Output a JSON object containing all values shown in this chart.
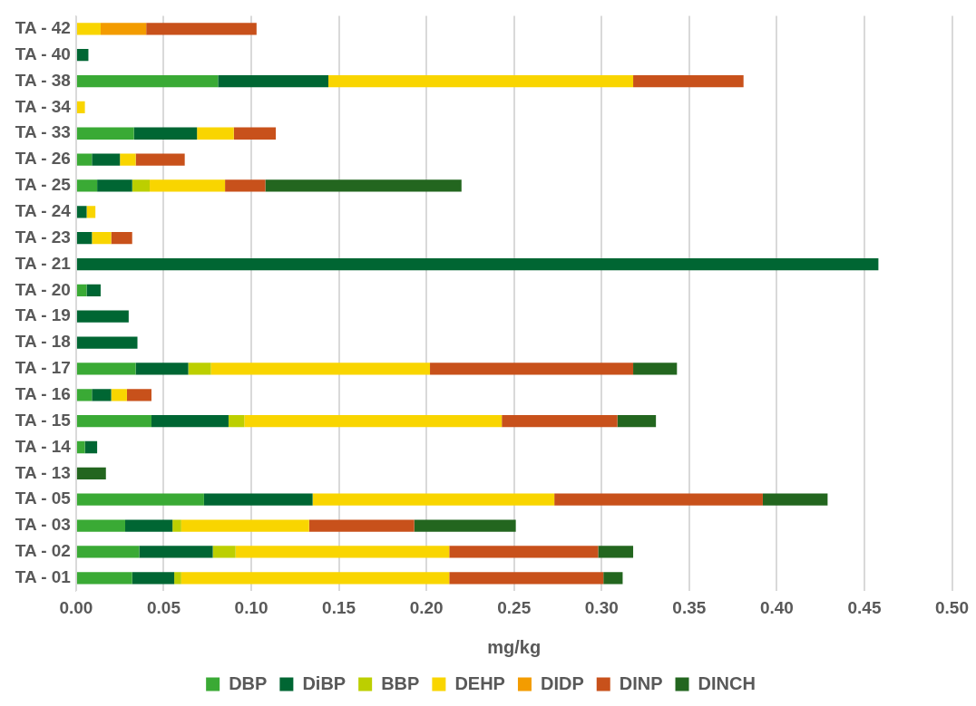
{
  "chart_data": {
    "type": "bar",
    "orientation": "horizontal",
    "stacked": true,
    "categories": [
      "TA - 42",
      "TA - 40",
      "TA - 38",
      "TA - 34",
      "TA - 33",
      "TA - 26",
      "TA - 25",
      "TA - 24",
      "TA - 23",
      "TA - 21",
      "TA - 20",
      "TA - 19",
      "TA - 18",
      "TA - 17",
      "TA - 16",
      "TA - 15",
      "TA - 14",
      "TA - 13",
      "TA - 05",
      "TA - 03",
      "TA - 02",
      "TA - 01"
    ],
    "series": [
      {
        "name": "DBP",
        "color": "#3aaa35",
        "values": [
          null,
          null,
          0.081,
          null,
          0.033,
          0.009,
          0.012,
          null,
          null,
          null,
          0.006,
          null,
          null,
          0.034,
          0.009,
          0.043,
          0.005,
          null,
          0.073,
          0.028,
          0.036,
          0.032
        ]
      },
      {
        "name": "DiBP",
        "color": "#006633",
        "values": [
          null,
          0.007,
          0.063,
          null,
          0.036,
          0.016,
          0.02,
          0.006,
          0.009,
          0.458,
          0.008,
          0.03,
          0.035,
          0.03,
          0.011,
          0.044,
          0.007,
          null,
          0.062,
          0.027,
          0.042,
          0.024
        ]
      },
      {
        "name": "BBP",
        "color": "#bccf00",
        "values": [
          null,
          null,
          null,
          null,
          null,
          null,
          0.01,
          null,
          null,
          null,
          null,
          null,
          null,
          0.013,
          null,
          0.009,
          null,
          null,
          null,
          0.005,
          0.013,
          0.004
        ]
      },
      {
        "name": "DEHP",
        "color": "#f9d500",
        "values": [
          0.014,
          null,
          0.174,
          0.005,
          0.021,
          0.009,
          0.043,
          0.005,
          0.011,
          null,
          null,
          null,
          null,
          0.125,
          0.009,
          0.147,
          null,
          null,
          0.138,
          0.073,
          0.122,
          0.153
        ]
      },
      {
        "name": "DIDP",
        "color": "#f39c00",
        "values": [
          0.026,
          null,
          null,
          null,
          null,
          null,
          null,
          null,
          null,
          null,
          null,
          null,
          null,
          null,
          null,
          null,
          null,
          null,
          null,
          null,
          null,
          null
        ]
      },
      {
        "name": "DINP",
        "color": "#c8511b",
        "values": [
          0.063,
          null,
          0.063,
          null,
          0.024,
          0.028,
          0.023,
          null,
          0.012,
          null,
          null,
          null,
          null,
          0.116,
          0.014,
          0.066,
          null,
          null,
          0.119,
          0.06,
          0.085,
          0.088
        ]
      },
      {
        "name": "DINCH",
        "color": "#23661f",
        "values": [
          null,
          null,
          null,
          null,
          null,
          null,
          0.112,
          null,
          null,
          null,
          null,
          null,
          null,
          0.025,
          null,
          0.022,
          null,
          0.017,
          0.037,
          0.058,
          0.02,
          0.011
        ]
      }
    ],
    "xlabel": "mg/kg",
    "xlim": [
      0,
      0.5
    ],
    "xticks": [
      {
        "value": 0,
        "label": "0.00"
      },
      {
        "value": 0.05,
        "label": "0.05"
      },
      {
        "value": 0.1,
        "label": "0.10"
      },
      {
        "value": 0.15,
        "label": "0.15"
      },
      {
        "value": 0.2,
        "label": "0.20"
      },
      {
        "value": 0.25,
        "label": "0.25"
      },
      {
        "value": 0.3,
        "label": "0.30"
      },
      {
        "value": 0.35,
        "label": "0.35"
      },
      {
        "value": 0.4,
        "label": "0.40"
      },
      {
        "value": 0.45,
        "label": "0.45"
      },
      {
        "value": 0.5,
        "label": "0.50"
      }
    ],
    "grid": "x",
    "legend": "bottom"
  }
}
